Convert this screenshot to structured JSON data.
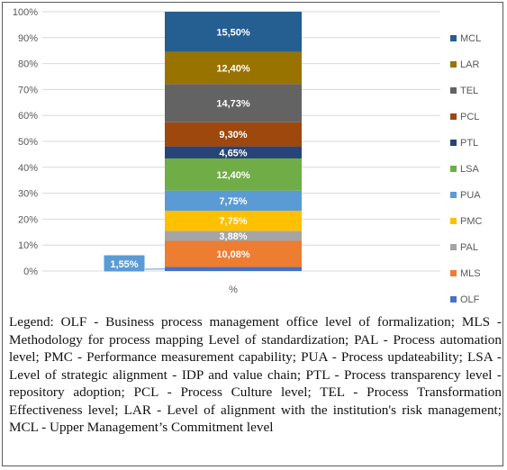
{
  "chart_data": {
    "type": "bar",
    "stacked": true,
    "percent_stacked": true,
    "categories": [
      "%"
    ],
    "ylim": [
      0,
      100
    ],
    "yticks": [
      "0%",
      "10%",
      "20%",
      "30%",
      "40%",
      "50%",
      "60%",
      "70%",
      "80%",
      "90%",
      "100%"
    ],
    "grid": true,
    "legend_position": "right",
    "series": [
      {
        "name": "OLF",
        "value": 1.55,
        "label": "1,55%",
        "color": "#4472c4"
      },
      {
        "name": "MLS",
        "value": 10.08,
        "label": "10,08%",
        "color": "#ed7d31"
      },
      {
        "name": "PAL",
        "value": 3.88,
        "label": "3,88%",
        "color": "#a5a5a5"
      },
      {
        "name": "PMC",
        "value": 7.75,
        "label": "7,75%",
        "color": "#ffc000"
      },
      {
        "name": "PUA",
        "value": 7.75,
        "label": "7,75%",
        "color": "#5b9bd5"
      },
      {
        "name": "LSA",
        "value": 12.4,
        "label": "12,40%",
        "color": "#70ad47"
      },
      {
        "name": "PTL",
        "value": 4.65,
        "label": "4,65%",
        "color": "#264478"
      },
      {
        "name": "PCL",
        "value": 9.3,
        "label": "9,30%",
        "color": "#9e480e"
      },
      {
        "name": "TEL",
        "value": 14.73,
        "label": "14,73%",
        "color": "#636363"
      },
      {
        "name": "LAR",
        "value": 12.4,
        "label": "12,40%",
        "color": "#997300"
      },
      {
        "name": "MCL",
        "value": 15.5,
        "label": "15,50%",
        "color": "#255e91"
      }
    ]
  },
  "caption": "Legend: OLF - Business process management office level of formalization; MLS - Methodology for process mapping Level of standardization; PAL - Process automation level; PMC - Performance measurement capability; PUA - Process updateability; LSA - Level of strategic alignment - IDP and value chain; PTL - Process transparency level - repository adoption; PCL - Process Culture level; TEL - Process Transformation Effectiveness level; LAR - Level of alignment with the institution's risk management; MCL - Upper Management’s Commitment level"
}
